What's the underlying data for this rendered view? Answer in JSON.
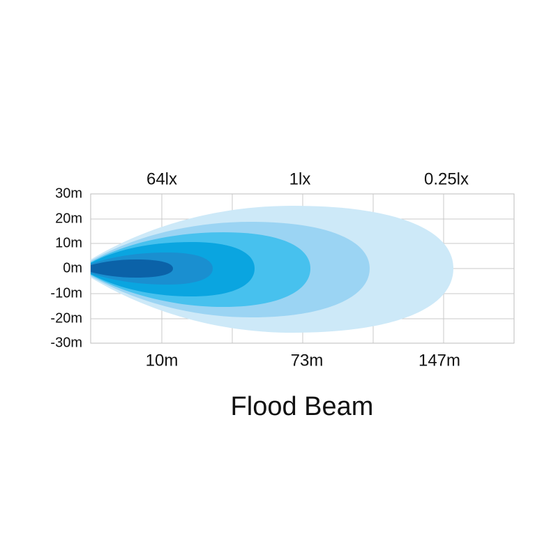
{
  "title": "Flood Beam",
  "illuminance_labels": [
    "64lx",
    "1lx",
    "0.25lx"
  ],
  "distance_labels": [
    "10m",
    "73m",
    "147m"
  ],
  "y_axis_labels": [
    "30m",
    "20m",
    "10m",
    "0m",
    "-10m",
    "-20m",
    "-30m"
  ]
}
